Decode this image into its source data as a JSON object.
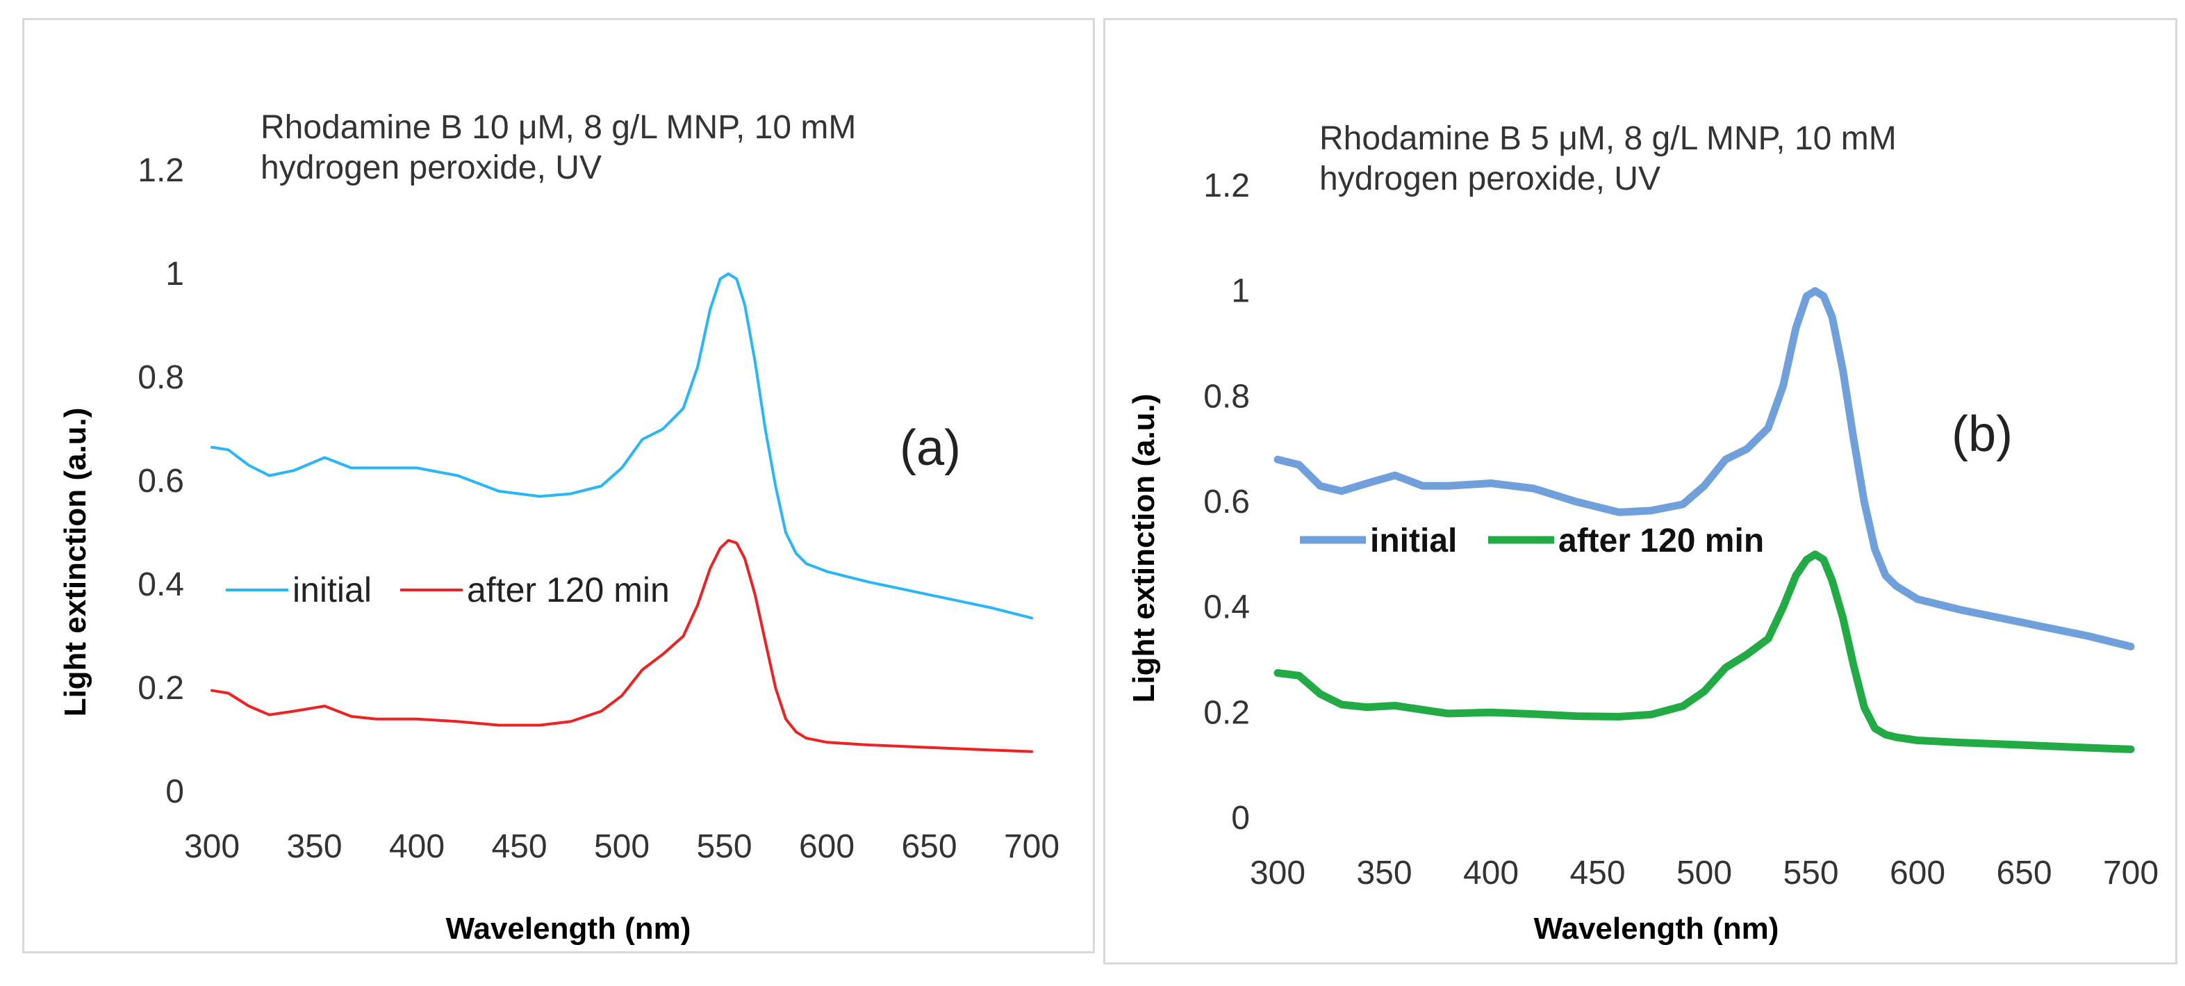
{
  "chart_data": [
    {
      "type": "line",
      "panel": "(a)",
      "title_lines": [
        "Rhodamine B 10 μM, 8 g/L MNP, 10 mM",
        "hydrogen peroxide, UV"
      ],
      "xlabel": "Wavelength (nm)",
      "ylabel": "Light extinction (a.u.)",
      "xlim": [
        300,
        700
      ],
      "ylim": [
        0,
        1.2
      ],
      "x_ticks": [
        "300",
        "350",
        "400",
        "450",
        "500",
        "550",
        "600",
        "650",
        "700"
      ],
      "y_ticks": [
        "0",
        "0.2",
        "0.4",
        "0.6",
        "0.8",
        "1",
        "1.2"
      ],
      "legend_position": "middle-left",
      "series": [
        {
          "name": "initial",
          "color": "#29b6f6",
          "style": "thin",
          "x": [
            300,
            308,
            318,
            328,
            340,
            355,
            368,
            380,
            400,
            420,
            440,
            460,
            475,
            490,
            500,
            510,
            520,
            530,
            537,
            543,
            548,
            552,
            556,
            560,
            565,
            570,
            575,
            580,
            585,
            590,
            600,
            620,
            650,
            680,
            700
          ],
          "y": [
            0.665,
            0.66,
            0.63,
            0.61,
            0.62,
            0.645,
            0.625,
            0.625,
            0.625,
            0.61,
            0.58,
            0.57,
            0.575,
            0.59,
            0.625,
            0.68,
            0.7,
            0.74,
            0.82,
            0.93,
            0.99,
            1.0,
            0.99,
            0.94,
            0.83,
            0.7,
            0.59,
            0.5,
            0.46,
            0.44,
            0.425,
            0.405,
            0.38,
            0.355,
            0.335
          ]
        },
        {
          "name": "after 120 min",
          "color": "#ee2222",
          "style": "thin",
          "x": [
            300,
            308,
            318,
            328,
            340,
            355,
            368,
            380,
            400,
            420,
            440,
            460,
            475,
            490,
            500,
            510,
            520,
            530,
            537,
            543,
            548,
            552,
            556,
            560,
            565,
            570,
            575,
            580,
            585,
            590,
            600,
            620,
            650,
            680,
            700
          ],
          "y": [
            0.195,
            0.19,
            0.165,
            0.148,
            0.155,
            0.165,
            0.145,
            0.14,
            0.14,
            0.135,
            0.128,
            0.128,
            0.135,
            0.155,
            0.185,
            0.235,
            0.265,
            0.3,
            0.36,
            0.43,
            0.47,
            0.485,
            0.48,
            0.45,
            0.38,
            0.29,
            0.2,
            0.14,
            0.115,
            0.103,
            0.095,
            0.09,
            0.085,
            0.08,
            0.077
          ]
        }
      ]
    },
    {
      "type": "line",
      "panel": "(b)",
      "title_lines": [
        "Rhodamine B 5 μM, 8 g/L MNP, 10 mM",
        "hydrogen peroxide, UV"
      ],
      "xlabel": "Wavelength (nm)",
      "ylabel": "Light extinction (a.u.)",
      "xlim": [
        300,
        700
      ],
      "ylim": [
        0,
        1.2
      ],
      "x_ticks": [
        "300",
        "350",
        "400",
        "450",
        "500",
        "550",
        "600",
        "650",
        "700"
      ],
      "y_ticks": [
        "0",
        "0.2",
        "0.4",
        "0.6",
        "0.8",
        "1",
        "1.2"
      ],
      "legend_position": "middle-left",
      "series": [
        {
          "name": "initial",
          "color": "#6fa0dc",
          "style": "thick",
          "x": [
            300,
            310,
            320,
            330,
            342,
            355,
            368,
            380,
            400,
            420,
            440,
            460,
            475,
            490,
            500,
            510,
            520,
            530,
            537,
            543,
            548,
            552,
            556,
            560,
            565,
            570,
            575,
            580,
            585,
            590,
            600,
            620,
            650,
            680,
            700
          ],
          "y": [
            0.68,
            0.67,
            0.63,
            0.62,
            0.635,
            0.65,
            0.63,
            0.63,
            0.635,
            0.625,
            0.6,
            0.58,
            0.583,
            0.595,
            0.63,
            0.68,
            0.7,
            0.74,
            0.82,
            0.93,
            0.99,
            1.0,
            0.99,
            0.95,
            0.85,
            0.72,
            0.6,
            0.51,
            0.46,
            0.44,
            0.415,
            0.395,
            0.37,
            0.345,
            0.325
          ]
        },
        {
          "name": "after 120 min",
          "color": "#22aa44",
          "style": "thick",
          "x": [
            300,
            310,
            320,
            330,
            342,
            355,
            368,
            380,
            400,
            420,
            440,
            460,
            475,
            490,
            500,
            510,
            520,
            530,
            537,
            543,
            548,
            552,
            556,
            560,
            565,
            570,
            575,
            580,
            585,
            590,
            600,
            620,
            650,
            680,
            700
          ],
          "y": [
            0.275,
            0.27,
            0.235,
            0.215,
            0.21,
            0.213,
            0.205,
            0.198,
            0.2,
            0.197,
            0.193,
            0.192,
            0.196,
            0.212,
            0.24,
            0.285,
            0.31,
            0.34,
            0.4,
            0.46,
            0.49,
            0.5,
            0.49,
            0.45,
            0.38,
            0.29,
            0.21,
            0.17,
            0.158,
            0.153,
            0.147,
            0.143,
            0.138,
            0.133,
            0.13
          ]
        }
      ]
    }
  ]
}
